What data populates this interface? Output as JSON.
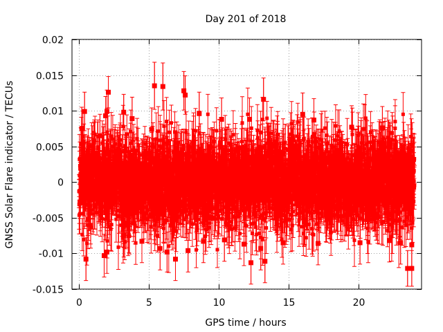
{
  "chart_data": {
    "type": "scatter",
    "title": "Day 201 of 2018",
    "xlabel": "GPS time / hours",
    "ylabel": "GNSS Solar Flare indicator / TECUs",
    "xlim": [
      -0.5,
      24.5
    ],
    "ylim": [
      -0.015,
      0.02
    ],
    "x_ticks": [
      0,
      5,
      10,
      15,
      20
    ],
    "x_tick_labels": [
      "0",
      "5",
      "10",
      "15",
      "20"
    ],
    "y_ticks": [
      -0.015,
      -0.01,
      -0.005,
      0,
      0.005,
      0.01,
      0.015,
      0.02
    ],
    "y_tick_labels": [
      "-0.015",
      "-0.01",
      "-0.005",
      "0",
      "0.005",
      "0.01",
      "0.015",
      "0.02"
    ],
    "grid": true,
    "legend": "none",
    "color": "#ff0000",
    "series": [
      {
        "name": "solar flare indicator",
        "style": "points with error bars",
        "marker": "filled square",
        "x_start": 0,
        "x_end": 24,
        "n_points": 2880,
        "seed": 201,
        "typical_value_range": [
          -0.0095,
          0.0095
        ],
        "typical_error": 0.003,
        "highlighted_points": [
          {
            "x": 0.2,
            "y": 0.0075,
            "err": 0.003
          },
          {
            "x": 0.4,
            "y": 0.0099,
            "err": 0.0027
          },
          {
            "x": 0.5,
            "y": -0.0108,
            "err": 0.003
          },
          {
            "x": 1.5,
            "y": 0.0065,
            "err": 0.003
          },
          {
            "x": 1.8,
            "y": -0.0103,
            "err": 0.003
          },
          {
            "x": 1.9,
            "y": 0.0093,
            "err": 0.0027
          },
          {
            "x": 2.0,
            "y": 0.0099,
            "err": 0.003
          },
          {
            "x": 2.0,
            "y": -0.0098,
            "err": 0.003
          },
          {
            "x": 2.1,
            "y": 0.0126,
            "err": 0.0022
          },
          {
            "x": 3.2,
            "y": 0.0098,
            "err": 0.0025
          },
          {
            "x": 3.2,
            "y": -0.0075,
            "err": 0.003
          },
          {
            "x": 3.8,
            "y": 0.0089,
            "err": 0.003
          },
          {
            "x": 4.5,
            "y": -0.0083,
            "err": 0.003
          },
          {
            "x": 5.2,
            "y": 0.0074,
            "err": 0.003
          },
          {
            "x": 5.4,
            "y": 0.0135,
            "err": 0.0033
          },
          {
            "x": 5.8,
            "y": -0.0093,
            "err": 0.003
          },
          {
            "x": 6.0,
            "y": 0.0134,
            "err": 0.0033
          },
          {
            "x": 6.3,
            "y": -0.0098,
            "err": 0.0028
          },
          {
            "x": 6.9,
            "y": -0.0108,
            "err": 0.003
          },
          {
            "x": 7.5,
            "y": 0.0128,
            "err": 0.0027
          },
          {
            "x": 7.6,
            "y": 0.0122,
            "err": 0.0027
          },
          {
            "x": 7.8,
            "y": -0.0096,
            "err": 0.003
          },
          {
            "x": 8.6,
            "y": 0.0096,
            "err": 0.003
          },
          {
            "x": 8.9,
            "y": -0.0083,
            "err": 0.003
          },
          {
            "x": 10.2,
            "y": 0.0088,
            "err": 0.003
          },
          {
            "x": 10.4,
            "y": -0.0081,
            "err": 0.003
          },
          {
            "x": 11.8,
            "y": -0.0087,
            "err": 0.003
          },
          {
            "x": 12.2,
            "y": 0.0088,
            "err": 0.003
          },
          {
            "x": 12.3,
            "y": -0.0113,
            "err": 0.003
          },
          {
            "x": 13.0,
            "y": -0.0093,
            "err": 0.003
          },
          {
            "x": 13.2,
            "y": 0.0116,
            "err": 0.003
          },
          {
            "x": 13.3,
            "y": -0.0111,
            "err": 0.003
          },
          {
            "x": 14.6,
            "y": -0.0085,
            "err": 0.003
          },
          {
            "x": 16.0,
            "y": 0.0095,
            "err": 0.003
          },
          {
            "x": 16.8,
            "y": 0.0087,
            "err": 0.003
          },
          {
            "x": 17.1,
            "y": -0.0086,
            "err": 0.003
          },
          {
            "x": 19.5,
            "y": 0.0077,
            "err": 0.003
          },
          {
            "x": 20.1,
            "y": -0.0085,
            "err": 0.003
          },
          {
            "x": 21.7,
            "y": 0.0076,
            "err": 0.003
          },
          {
            "x": 22.2,
            "y": -0.0082,
            "err": 0.003
          },
          {
            "x": 23.0,
            "y": -0.0085,
            "err": 0.003
          },
          {
            "x": 23.5,
            "y": -0.0121,
            "err": 0.0025
          },
          {
            "x": 23.8,
            "y": -0.0121,
            "err": 0.0025
          },
          {
            "x": 23.8,
            "y": -0.0088,
            "err": 0.003
          }
        ]
      }
    ]
  }
}
